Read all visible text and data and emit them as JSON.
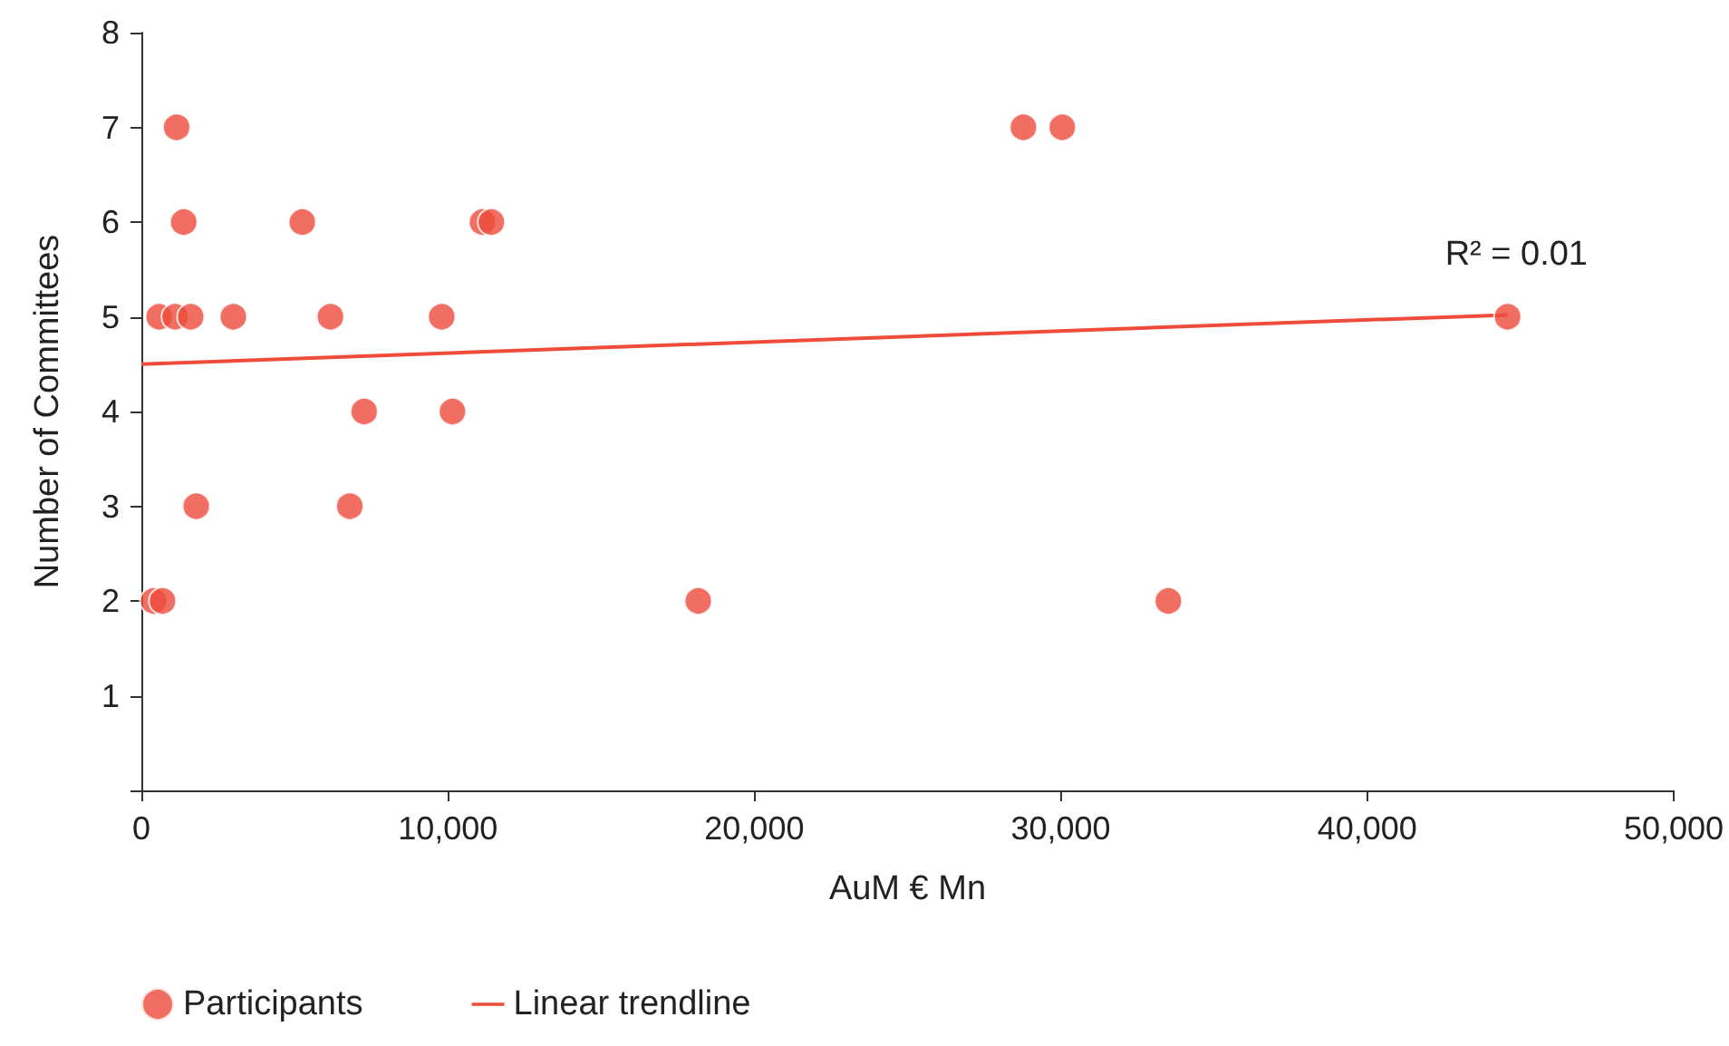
{
  "chart_data": {
    "type": "scatter",
    "xlabel": "AuM € Mn",
    "ylabel": "Number of Committees",
    "xlim": [
      0,
      50000
    ],
    "xticks": [
      {
        "value": 0,
        "label": "0"
      },
      {
        "value": 10000,
        "label": "10,000"
      },
      {
        "value": 20000,
        "label": "20,000"
      },
      {
        "value": 30000,
        "label": "30,000"
      },
      {
        "value": 40000,
        "label": "40,000"
      },
      {
        "value": 50000,
        "label": "50,000"
      }
    ],
    "ylim": [
      0,
      8
    ],
    "yticks": [
      {
        "value": 0,
        "label": null
      },
      1,
      2,
      3,
      4,
      5,
      6,
      7,
      8
    ],
    "grid": false,
    "legend": "bottom left",
    "series": [
      {
        "name": "Participants",
        "marker": "circle",
        "color": "#ee4b3b",
        "x": [
          1150,
          28780,
          30050,
          1380,
          5250,
          11130,
          11420,
          580,
          1100,
          1610,
          3000,
          6170,
          9800,
          44580,
          7270,
          10150,
          1790,
          6800,
          400,
          690,
          18170,
          33510
        ],
        "values": [
          7,
          7,
          7,
          6,
          6,
          6,
          6,
          5,
          5,
          5,
          5,
          5,
          5,
          5,
          4,
          4,
          3,
          3,
          2,
          2,
          2,
          2
        ]
      },
      {
        "name": "Linear trendline",
        "type": "line",
        "marker": "none",
        "line_style": "solid",
        "color": "#ee4b3b",
        "x": [
          0,
          44580
        ],
        "values": [
          4.5,
          5.02
        ]
      }
    ],
    "annotations": [
      "R² = 0.01"
    ]
  }
}
